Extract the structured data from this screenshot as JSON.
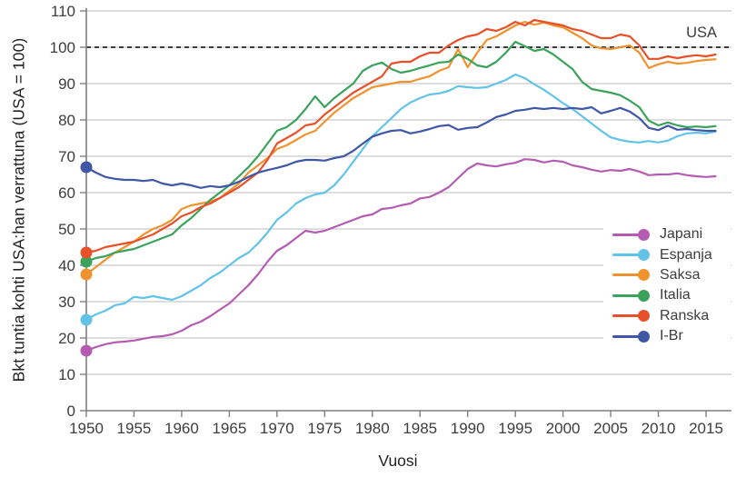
{
  "figure": {
    "background": "#ffffff"
  },
  "chart_data": {
    "type": "line",
    "title": "",
    "xlabel": "Vuosi",
    "ylabel": "Bkt tuntia kohti USA:han verrattuna (USA = 100)",
    "x_start": 1950,
    "x_end": 2016,
    "x_ticks": [
      1950,
      1955,
      1960,
      1965,
      1970,
      1975,
      1980,
      1985,
      1990,
      1995,
      2000,
      2005,
      2010,
      2015
    ],
    "ylim": [
      0,
      110
    ],
    "y_ticks": [
      0,
      10,
      20,
      30,
      40,
      50,
      60,
      70,
      80,
      90,
      100,
      110
    ],
    "grid": "horizontal",
    "legend_position": "right-middle",
    "reference_line": {
      "value": 100,
      "label": "USA",
      "style": "dashed"
    },
    "colors": {
      "grid": "#c9c9c9",
      "axis": "#7f7f7f",
      "tick_text": "#3d3d3d",
      "reference": "#3d3d3d"
    },
    "marker": "start-dot",
    "series": [
      {
        "name": "Japani",
        "color": "#b45cb2",
        "values": [
          16.5,
          17.5,
          18.3,
          18.8,
          19.0,
          19.3,
          19.8,
          20.3,
          20.5,
          21.0,
          22.0,
          23.5,
          24.5,
          26.0,
          27.8,
          29.5,
          32.0,
          34.5,
          37.5,
          41.0,
          44.0,
          45.5,
          47.5,
          49.5,
          49.0,
          49.5,
          50.5,
          51.5,
          52.5,
          53.5,
          54.0,
          55.5,
          55.8,
          56.5,
          57.0,
          58.4,
          58.8,
          60.0,
          61.5,
          64.0,
          66.5,
          68.0,
          67.5,
          67.2,
          67.8,
          68.2,
          69.2,
          69.0,
          68.3,
          68.8,
          68.5,
          67.5,
          67.0,
          66.3,
          65.8,
          66.2,
          66.0,
          66.5,
          65.8,
          64.8,
          65.0,
          65.0,
          65.3,
          64.8,
          64.5,
          64.3,
          64.5
        ]
      },
      {
        "name": "Espanja",
        "color": "#62c3e8",
        "values": [
          25.0,
          26.5,
          27.5,
          29.0,
          29.5,
          31.3,
          31.0,
          31.5,
          31.0,
          30.5,
          31.5,
          33.0,
          34.5,
          36.5,
          38.0,
          40.0,
          42.0,
          43.5,
          46.0,
          49.0,
          52.5,
          54.5,
          57.0,
          58.5,
          59.5,
          60.0,
          62.0,
          65.0,
          68.5,
          72.0,
          75.5,
          78.0,
          80.5,
          83.0,
          84.8,
          86.0,
          87.0,
          87.3,
          88.0,
          89.3,
          89.0,
          88.8,
          89.0,
          90.0,
          91.0,
          92.5,
          91.5,
          89.8,
          88.3,
          86.5,
          84.6,
          83.0,
          81.0,
          79.0,
          77.0,
          75.2,
          74.5,
          74.0,
          73.8,
          74.2,
          73.8,
          74.3,
          75.5,
          76.3,
          76.5,
          76.3,
          76.8
        ]
      },
      {
        "name": "Saksa",
        "color": "#f0932f",
        "values": [
          37.5,
          39.5,
          41.5,
          43.5,
          45.0,
          46.5,
          48.5,
          50.0,
          51.0,
          52.5,
          55.5,
          56.5,
          57.0,
          57.5,
          58.5,
          60.5,
          62.5,
          65.5,
          67.5,
          69.5,
          72.0,
          73.0,
          74.5,
          76.0,
          77.0,
          79.5,
          82.0,
          84.0,
          86.0,
          87.5,
          89.0,
          89.5,
          90.0,
          90.5,
          90.5,
          91.3,
          92.0,
          93.5,
          94.5,
          99.5,
          94.5,
          98.5,
          102.0,
          103.0,
          104.5,
          106.0,
          107.0,
          106.2,
          106.8,
          106.0,
          105.5,
          104.0,
          102.5,
          100.5,
          99.7,
          99.5,
          100.0,
          100.5,
          98.5,
          94.3,
          95.3,
          96.0,
          95.5,
          95.7,
          96.2,
          96.5,
          96.7
        ]
      },
      {
        "name": "Italia",
        "color": "#3aa25a",
        "values": [
          41.0,
          42.0,
          42.5,
          43.5,
          44.0,
          44.5,
          45.5,
          46.5,
          47.5,
          48.5,
          51.0,
          53.0,
          55.5,
          58.0,
          60.0,
          62.0,
          64.5,
          67.0,
          70.0,
          73.5,
          77.0,
          78.0,
          80.0,
          83.0,
          86.5,
          83.5,
          86.0,
          88.0,
          90.0,
          93.5,
          95.0,
          95.8,
          94.0,
          93.0,
          93.5,
          94.3,
          95.0,
          95.8,
          96.0,
          98.0,
          96.8,
          95.0,
          94.5,
          96.0,
          98.5,
          101.5,
          100.3,
          99.0,
          99.5,
          98.0,
          96.0,
          94.0,
          90.5,
          88.5,
          88.0,
          87.5,
          86.8,
          85.3,
          83.5,
          79.8,
          78.5,
          79.3,
          78.5,
          78.0,
          78.2,
          78.0,
          78.3
        ]
      },
      {
        "name": "Ranska",
        "color": "#e8502a",
        "values": [
          43.5,
          44.0,
          45.0,
          45.5,
          46.0,
          46.5,
          47.5,
          48.5,
          50.0,
          51.5,
          53.5,
          54.5,
          56.0,
          57.0,
          58.5,
          60.0,
          61.5,
          63.5,
          65.5,
          69.0,
          73.5,
          75.0,
          76.5,
          78.5,
          79.0,
          81.5,
          83.5,
          85.5,
          87.5,
          89.0,
          90.5,
          92.0,
          95.5,
          96.0,
          96.0,
          97.5,
          98.5,
          98.5,
          100.5,
          102.0,
          103.0,
          103.5,
          105.0,
          104.5,
          105.5,
          107.0,
          106.0,
          107.5,
          107.0,
          106.5,
          106.0,
          105.0,
          104.5,
          103.5,
          102.5,
          102.5,
          103.5,
          103.0,
          100.5,
          96.8,
          96.8,
          97.5,
          97.0,
          97.5,
          97.8,
          97.5,
          98.0
        ]
      },
      {
        "name": "I-Br",
        "color": "#3f57a6",
        "values": [
          67.0,
          65.5,
          64.3,
          63.8,
          63.5,
          63.5,
          63.2,
          63.5,
          62.5,
          62.0,
          62.5,
          62.0,
          61.3,
          61.8,
          61.5,
          62.0,
          63.0,
          64.3,
          65.5,
          66.2,
          66.8,
          67.5,
          68.5,
          69.0,
          69.0,
          68.8,
          69.5,
          70.0,
          71.5,
          73.5,
          75.4,
          76.3,
          77.0,
          77.2,
          76.3,
          76.8,
          77.5,
          78.3,
          78.6,
          77.3,
          77.8,
          78.0,
          79.3,
          80.8,
          81.5,
          82.5,
          82.8,
          83.3,
          83.0,
          83.3,
          83.0,
          83.3,
          83.0,
          83.5,
          81.8,
          82.5,
          83.3,
          82.3,
          80.5,
          77.8,
          77.2,
          78.4,
          77.3,
          77.5,
          77.2,
          77.0,
          77.0
        ]
      }
    ]
  }
}
